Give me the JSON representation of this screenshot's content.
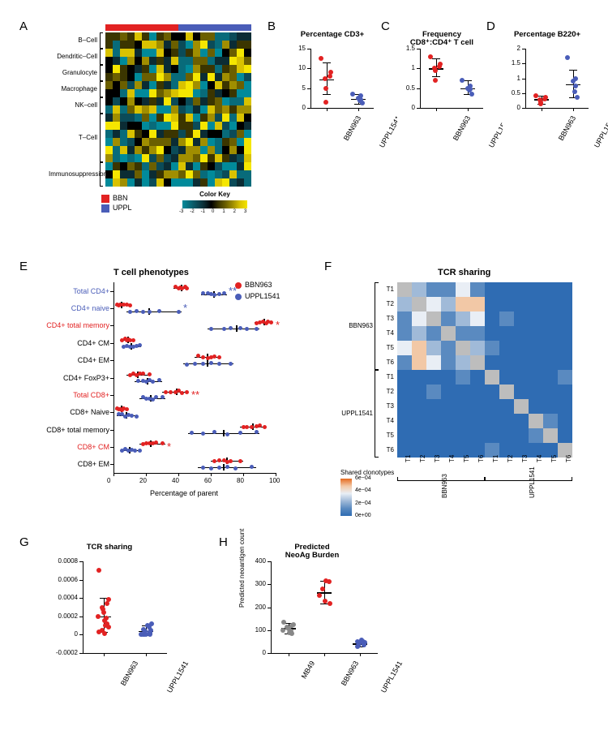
{
  "colors": {
    "bbn": "#e22222",
    "uppl": "#4a5db8",
    "black": "#000000",
    "heat_scale": [
      "#018a9a",
      "#086b7a",
      "#0b4b58",
      "#0b2c34",
      "#000000",
      "#3b3500",
      "#6b5f00",
      "#a08e00",
      "#d9c200",
      "#f5e600"
    ]
  },
  "panelA": {
    "letter": "A",
    "top_bar": {
      "bbn_cols": 10,
      "uppl_cols": 10
    },
    "row_groups": [
      {
        "label": "B–Cell",
        "rows": 2
      },
      {
        "label": "Dendritic–Cell",
        "rows": 2
      },
      {
        "label": "Granulocyte",
        "rows": 2
      },
      {
        "label": "Macrophage",
        "rows": 2
      },
      {
        "label": "NK–cell",
        "rows": 2
      },
      {
        "label": "T–Cell",
        "rows": 6
      },
      {
        "label": "Immunosuppression",
        "rows": 3
      }
    ],
    "cols": 20,
    "legend": {
      "bbn": "BBN",
      "uppl": "UPPL",
      "colorkey_title": "Color Key",
      "ticks": [
        "-3",
        "-2",
        "-1",
        "0",
        "1",
        "2",
        "3"
      ]
    },
    "matrix_seed": 11
  },
  "panelB": {
    "letter": "B",
    "title": "Percentage CD3+",
    "ylim": [
      0,
      15
    ],
    "yticks": [
      0,
      5,
      10,
      15
    ],
    "groups": [
      "BBN963",
      "UPPL1541"
    ],
    "points": {
      "BBN963": [
        12.5,
        9,
        8,
        7.5,
        5,
        1.5
      ],
      "UPPL1541": [
        3.5,
        3,
        2.5,
        2,
        1.8,
        1.2
      ]
    },
    "means": {
      "BBN963": 7.2,
      "UPPL1541": 2.3
    },
    "whisker": {
      "BBN963": [
        3.5,
        11.5
      ],
      "UPPL1541": [
        1.1,
        3.5
      ]
    }
  },
  "panelC": {
    "letter": "C",
    "title": "Frequency\nCD8⁺:CD4⁺ T cell",
    "ylim": [
      0,
      1.5
    ],
    "yticks": [
      0,
      0.5,
      1.0,
      1.5
    ],
    "groups": [
      "BBN963",
      "UPPL1541"
    ],
    "points": {
      "BBN963": [
        1.3,
        1.1,
        1.05,
        1.0,
        0.95,
        0.7
      ],
      "UPPL1541": [
        0.7,
        0.55,
        0.5,
        0.48,
        0.45,
        0.35
      ]
    },
    "means": {
      "BBN963": 1.0,
      "UPPL1541": 0.5
    },
    "whisker": {
      "BBN963": [
        0.8,
        1.25
      ],
      "UPPL1541": [
        0.35,
        0.7
      ]
    }
  },
  "panelD": {
    "letter": "D",
    "title": "Percentage B220+",
    "ylim": [
      0,
      2.0
    ],
    "yticks": [
      0,
      0.5,
      1.0,
      1.5,
      2.0
    ],
    "groups": [
      "BBN963",
      "UPPL1541"
    ],
    "points": {
      "BBN963": [
        0.4,
        0.35,
        0.3,
        0.28,
        0.2,
        0.15
      ],
      "UPPL1541": [
        1.7,
        1.0,
        0.9,
        0.75,
        0.55,
        0.35
      ]
    },
    "means": {
      "BBN963": 0.3,
      "UPPL1541": 0.8
    },
    "whisker": {
      "BBN963": [
        0.14,
        0.42
      ],
      "UPPL1541": [
        0.35,
        1.3
      ]
    }
  },
  "panelE": {
    "letter": "E",
    "title": "T cell phenotypes",
    "xlabel": "Percentage of parent",
    "xlim": [
      0,
      100
    ],
    "xticks": [
      0,
      20,
      40,
      60,
      80,
      100
    ],
    "legend": [
      {
        "label": "BBN963",
        "color": "#e22222"
      },
      {
        "label": "UPPL1541",
        "color": "#4a5db8"
      }
    ],
    "rows": [
      {
        "label": "Total CD4+",
        "color": "#4a5db8",
        "sig": "**",
        "sig_color": "#4a5db8",
        "bbn": [
          38,
          40,
          41,
          42,
          44,
          45
        ],
        "uppl": [
          55,
          58,
          60,
          62,
          65,
          68
        ],
        "bbn_mean": 42,
        "uppl_mean": 62,
        "bbn_w": [
          37,
          46
        ],
        "uppl_w": [
          54,
          70
        ]
      },
      {
        "label": "CD4+ naive",
        "color": "#4a5db8",
        "sig": "*",
        "sig_color": "#4a5db8",
        "bbn": [
          2,
          3,
          4,
          6,
          8,
          10
        ],
        "uppl": [
          10,
          14,
          18,
          22,
          28,
          40
        ],
        "bbn_mean": 5,
        "uppl_mean": 22,
        "bbn_w": [
          1,
          11
        ],
        "uppl_w": [
          8,
          42
        ]
      },
      {
        "label": "CD4+ total memory",
        "color": "#e22222",
        "sig": "*",
        "sig_color": "#e22222",
        "bbn": [
          88,
          90,
          92,
          94,
          95,
          97
        ],
        "uppl": [
          60,
          68,
          72,
          78,
          82,
          88
        ],
        "bbn_mean": 93,
        "uppl_mean": 76,
        "bbn_w": [
          87,
          98
        ],
        "uppl_w": [
          58,
          90
        ]
      },
      {
        "label": "CD4+ CM",
        "color": "#000000",
        "sig": "",
        "bbn": [
          5,
          7,
          8,
          9,
          10,
          12
        ],
        "uppl": [
          6,
          8,
          10,
          12,
          14,
          16
        ],
        "bbn_mean": 9,
        "uppl_mean": 11,
        "bbn_w": [
          4,
          13
        ],
        "uppl_w": [
          5,
          17
        ]
      },
      {
        "label": "CD4+ EM",
        "color": "#000000",
        "sig": "",
        "bbn": [
          52,
          55,
          58,
          60,
          62,
          65
        ],
        "uppl": [
          45,
          50,
          55,
          60,
          65,
          72
        ],
        "bbn_mean": 58,
        "uppl_mean": 58,
        "bbn_w": [
          50,
          66
        ],
        "uppl_w": [
          43,
          74
        ]
      },
      {
        "label": "CD4+ FoxP3+",
        "color": "#000000",
        "sig": "",
        "bbn": [
          10,
          12,
          14,
          16,
          18,
          22
        ],
        "uppl": [
          15,
          18,
          20,
          22,
          24,
          28
        ],
        "bbn_mean": 15,
        "uppl_mean": 21,
        "bbn_w": [
          8,
          23
        ],
        "uppl_w": [
          13,
          30
        ]
      },
      {
        "label": "Total CD8+",
        "color": "#e22222",
        "sig": "**",
        "sig_color": "#e22222",
        "bbn": [
          32,
          35,
          38,
          40,
          42,
          45
        ],
        "uppl": [
          18,
          20,
          22,
          24,
          26,
          30
        ],
        "bbn_mean": 39,
        "uppl_mean": 23,
        "bbn_w": [
          30,
          46
        ],
        "uppl_w": [
          16,
          32
        ]
      },
      {
        "label": "CD8+ Naive",
        "color": "#000000",
        "sig": "",
        "bbn": [
          2,
          3,
          4,
          5,
          6,
          8
        ],
        "uppl": [
          3,
          5,
          7,
          9,
          11,
          14
        ],
        "bbn_mean": 5,
        "uppl_mean": 8,
        "bbn_w": [
          1,
          9
        ],
        "uppl_w": [
          2,
          15
        ]
      },
      {
        "label": "CD8+ total memory",
        "color": "#000000",
        "sig": "",
        "bbn": [
          80,
          82,
          85,
          88,
          90,
          93
        ],
        "uppl": [
          48,
          55,
          62,
          70,
          78,
          88
        ],
        "bbn_mean": 86,
        "uppl_mean": 68,
        "bbn_w": [
          78,
          94
        ],
        "uppl_w": [
          46,
          90
        ]
      },
      {
        "label": "CD8+ CM",
        "color": "#e22222",
        "sig": "*",
        "sig_color": "#e22222",
        "bbn": [
          18,
          20,
          22,
          24,
          26,
          30
        ],
        "uppl": [
          5,
          7,
          9,
          11,
          13,
          16
        ],
        "bbn_mean": 23,
        "uppl_mean": 10,
        "bbn_w": [
          16,
          32
        ],
        "uppl_w": [
          4,
          17
        ]
      },
      {
        "label": "CD8+ EM",
        "color": "#000000",
        "sig": "",
        "bbn": [
          62,
          65,
          68,
          70,
          72,
          78
        ],
        "uppl": [
          55,
          60,
          65,
          70,
          75,
          85
        ],
        "bbn_mean": 70,
        "uppl_mean": 68,
        "bbn_w": [
          60,
          80
        ],
        "uppl_w": [
          52,
          88
        ]
      }
    ]
  },
  "panelF": {
    "letter": "F",
    "title": "TCR sharing",
    "row_group_labels": [
      "BBN963",
      "UPPL1541"
    ],
    "tick_labels": [
      "T1",
      "T2",
      "T3",
      "T4",
      "T5",
      "T6"
    ],
    "x_group_labels": [
      "BBN963",
      "UPPL1541"
    ],
    "col_labels": [
      "T1",
      "T2",
      "T3",
      "T4",
      "T5",
      "T6",
      "T1",
      "T2",
      "T3",
      "T4",
      "T5",
      "T6"
    ],
    "legend": {
      "title": "Shared clonotypes",
      "ticks": [
        "6e−04",
        "4e−04",
        "2e−04",
        "0e+00"
      ]
    },
    "scale": [
      "#e56a1f",
      "#f2c8a6",
      "#e9eef5",
      "#a0bad8",
      "#5a8ac0",
      "#2f6cb3"
    ],
    "matrix": [
      [
        null,
        2,
        1,
        1,
        3,
        1,
        0,
        0,
        0,
        0,
        0,
        0
      ],
      [
        2,
        null,
        3,
        2,
        4,
        4,
        0,
        0,
        0,
        0,
        0,
        0
      ],
      [
        1,
        3,
        null,
        1,
        2,
        3,
        0,
        1,
        0,
        0,
        0,
        0
      ],
      [
        1,
        2,
        1,
        null,
        1,
        1,
        0,
        0,
        0,
        0,
        0,
        0
      ],
      [
        3,
        4,
        2,
        1,
        null,
        2,
        1,
        0,
        0,
        0,
        0,
        0
      ],
      [
        1,
        4,
        3,
        1,
        2,
        null,
        0,
        0,
        0,
        0,
        0,
        0
      ],
      [
        0,
        0,
        0,
        0,
        1,
        0,
        null,
        0,
        0,
        0,
        0,
        1
      ],
      [
        0,
        0,
        1,
        0,
        0,
        0,
        0,
        null,
        0,
        0,
        0,
        0
      ],
      [
        0,
        0,
        0,
        0,
        0,
        0,
        0,
        0,
        null,
        0,
        0,
        0
      ],
      [
        0,
        0,
        0,
        0,
        0,
        0,
        0,
        0,
        0,
        null,
        1,
        0
      ],
      [
        0,
        0,
        0,
        0,
        0,
        0,
        0,
        0,
        0,
        1,
        null,
        0
      ],
      [
        0,
        0,
        0,
        0,
        0,
        0,
        1,
        0,
        0,
        0,
        0,
        null
      ]
    ]
  },
  "panelG": {
    "letter": "G",
    "title": "TCR sharing",
    "ylim": [
      -0.0002,
      0.0008
    ],
    "yticks": [
      -0.0002,
      0,
      0.0002,
      0.0004,
      0.0006,
      0.0008
    ],
    "groups": [
      "BBN963",
      "UPPL1541"
    ],
    "points": {
      "BBN963": [
        0.0007,
        0.00038,
        0.00034,
        0.0003,
        0.00028,
        0.00024,
        0.0002,
        0.00018,
        0.00015,
        0.00012,
        0.0001,
        8e-05,
        5e-05,
        3e-05,
        1e-05
      ],
      "UPPL1541": [
        0.00012,
        0.0001,
        8e-05,
        6e-05,
        5e-05,
        4e-05,
        3e-05,
        2e-05,
        1e-05,
        5e-06,
        0,
        0,
        0,
        0,
        0
      ]
    },
    "means": {
      "BBN963": 0.0002,
      "UPPL1541": 4e-05
    },
    "whisker": {
      "BBN963": [
        3e-05,
        0.0004
      ],
      "UPPL1541": [
        0,
        0.0001
      ]
    }
  },
  "panelH": {
    "letter": "H",
    "title": "Predicted\nNeoAg Burden",
    "ylabel": "Predicted neoantigen count",
    "ylim": [
      0,
      400
    ],
    "yticks": [
      0,
      100,
      200,
      300,
      400
    ],
    "groups": [
      "MB49",
      "BBN963",
      "UPPL1541"
    ],
    "points": {
      "MB49": [
        135,
        125,
        120,
        115,
        110,
        105,
        100,
        95,
        90,
        85
      ],
      "BBN963": [
        315,
        310,
        280,
        250,
        225,
        215
      ],
      "UPPL1541": [
        55,
        50,
        48,
        45,
        42,
        40,
        38,
        35,
        32,
        30
      ]
    },
    "means": {
      "MB49": 108,
      "BBN963": 265,
      "UPPL1541": 42
    },
    "whisker": {
      "MB49": [
        85,
        130
      ],
      "BBN963": [
        215,
        315
      ],
      "UPPL1541": [
        28,
        55
      ]
    },
    "point_colors": {
      "MB49": "#888888",
      "BBN963": "#e22222",
      "UPPL1541": "#4a5db8"
    }
  }
}
